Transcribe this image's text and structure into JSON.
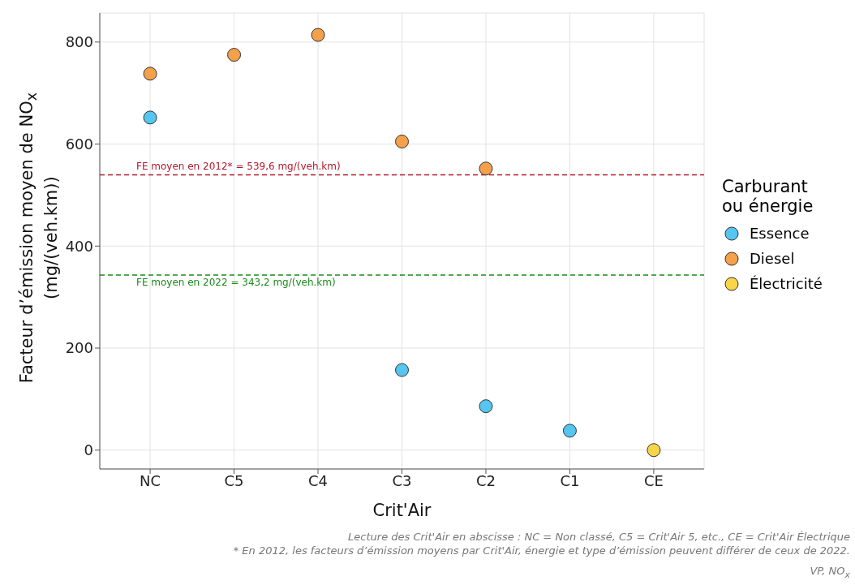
{
  "chart_data": {
    "type": "scatter",
    "xlabel": "Crit'Air",
    "ylabel": "Facteur d’émission moyen de NO$_{x}$ (mg/(veh.km))",
    "legend_title": "Carburant ou énergie",
    "legend": "right",
    "grid": true,
    "marker": "circle",
    "categories": [
      "NC",
      "C5",
      "C4",
      "C3",
      "C2",
      "C1",
      "CE"
    ],
    "ylim": [
      -37,
      857
    ],
    "yticks": [
      0,
      200,
      400,
      600,
      800
    ],
    "series": [
      {
        "name": "Essence",
        "color": "#56c5f0",
        "values": [
          652,
          null,
          null,
          157,
          86,
          38,
          null
        ]
      },
      {
        "name": "Diesel",
        "color": "#f5a04a",
        "values": [
          738,
          775,
          814,
          605,
          552,
          null,
          null
        ]
      },
      {
        "name": "Électricité",
        "color": "#f7d547",
        "values": [
          null,
          null,
          null,
          null,
          null,
          null,
          0
        ]
      }
    ],
    "ref_lines": [
      {
        "axis": "y",
        "value": 539.6,
        "label": "FE moyen en 2012* = 539,6 mg/(veh.km)",
        "color": "#b2182b",
        "line_style": "dashed"
      },
      {
        "axis": "y",
        "value": 343.2,
        "label": "FE moyen en 2022 = 343,2 mg/(veh.km)",
        "color": "#1a8a1a",
        "line_style": "dashed"
      }
    ],
    "annotations": [
      "Lecture des Crit'Air en abscisse : NC = Non classé, C5 = Crit'Air 5, etc., CE = Crit'Air Électrique",
      "* En 2012, les facteurs d’émission moyens par Crit'Air, énergie et type d’émission peuvent différer de ceux de 2022.",
      "VP, NO$_{x}$"
    ]
  }
}
